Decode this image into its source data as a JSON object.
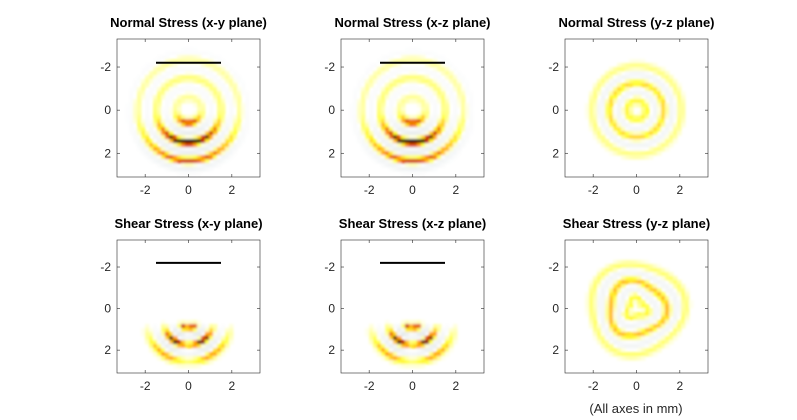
{
  "figure": {
    "note": "(All axes in mm)"
  },
  "chart_data": [
    {
      "type": "heatmap",
      "title": "Normal Stress (x-y plane)",
      "xlim": [
        -3.3,
        3.3
      ],
      "ylim": [
        -3.3,
        3.1
      ],
      "y_reversed": true,
      "xticks": [
        -2,
        0,
        2
      ],
      "yticks": [
        -2,
        0,
        2
      ],
      "xticklabels": [
        "-2",
        "0",
        "2"
      ],
      "yticklabels": [
        "-2",
        "0",
        "2"
      ],
      "colormap": [
        "#c8d4d8",
        "#ffffff",
        "#ffff33",
        "#ff9900",
        "#c01000",
        "#200000"
      ],
      "transducer_bar": {
        "x": [
          -1.5,
          1.5
        ],
        "y": -2.2
      },
      "field": {
        "pattern": "arcs",
        "center": [
          0,
          0.0
        ],
        "arc_band": [
          0.4,
          3.2
        ],
        "rings": [
          {
            "r": 0.6,
            "amp": 0.75
          },
          {
            "r": 1.05,
            "amp": -0.35
          },
          {
            "r": 1.5,
            "amp": 1.0
          },
          {
            "r": 1.95,
            "amp": -0.35
          },
          {
            "r": 2.35,
            "amp": 0.7
          },
          {
            "r": 2.7,
            "amp": -0.25
          }
        ]
      }
    },
    {
      "type": "heatmap",
      "title": "Normal Stress  (x-z plane)",
      "xlim": [
        -3.3,
        3.3
      ],
      "ylim": [
        -3.3,
        3.1
      ],
      "y_reversed": true,
      "xticks": [
        -2,
        0,
        2
      ],
      "yticks": [
        -2,
        0,
        2
      ],
      "xticklabels": [
        "-2",
        "0",
        "2"
      ],
      "yticklabels": [
        "-2",
        "0",
        "2"
      ],
      "transducer_bar": {
        "x": [
          -1.5,
          1.5
        ],
        "y": -2.2
      },
      "field": {
        "pattern": "arcs",
        "center": [
          0,
          0.0
        ],
        "arc_band": [
          0.4,
          3.2
        ],
        "rings": [
          {
            "r": 0.6,
            "amp": 0.75
          },
          {
            "r": 1.05,
            "amp": -0.35
          },
          {
            "r": 1.5,
            "amp": 1.0
          },
          {
            "r": 1.95,
            "amp": -0.35
          },
          {
            "r": 2.35,
            "amp": 0.7
          },
          {
            "r": 2.7,
            "amp": -0.25
          }
        ]
      }
    },
    {
      "type": "heatmap",
      "title": "Normal Stress  (y-z plane)",
      "xlim": [
        -3.3,
        3.3
      ],
      "ylim": [
        -3.3,
        3.1
      ],
      "y_reversed": true,
      "xticks": [
        -2,
        0,
        2
      ],
      "yticks": [
        -2,
        0,
        2
      ],
      "xticklabels": [
        "-2",
        "0",
        "2"
      ],
      "yticklabels": [
        "-2",
        "0",
        "2"
      ],
      "transducer_bar": null,
      "field": {
        "pattern": "rings",
        "center": [
          0,
          0.0
        ],
        "rings": [
          {
            "r": 0.45,
            "amp": 0.5
          },
          {
            "r": 0.85,
            "amp": -0.3
          },
          {
            "r": 1.25,
            "amp": 0.6
          },
          {
            "r": 1.65,
            "amp": -0.3
          },
          {
            "r": 2.05,
            "amp": 0.3
          }
        ]
      }
    },
    {
      "type": "heatmap",
      "title": "Shear Stress (x-y plane)",
      "xlim": [
        -3.3,
        3.3
      ],
      "ylim": [
        -3.3,
        3.1
      ],
      "y_reversed": true,
      "xticks": [
        -2,
        0,
        2
      ],
      "yticks": [
        -2,
        0,
        2
      ],
      "xticklabels": [
        "-2",
        "0",
        "2"
      ],
      "yticklabels": [
        "-2",
        "0",
        "2"
      ],
      "transducer_bar": {
        "x": [
          -1.5,
          1.5
        ],
        "y": -2.2
      },
      "field": {
        "pattern": "shear",
        "center": [
          0,
          0.6
        ],
        "rings": [
          {
            "r": 0.35,
            "amp": 0.9
          },
          {
            "r": 0.75,
            "amp": -0.5
          },
          {
            "r": 1.15,
            "amp": 1.0
          },
          {
            "r": 1.55,
            "amp": -0.4
          },
          {
            "r": 1.95,
            "amp": 0.6
          }
        ]
      }
    },
    {
      "type": "heatmap",
      "title": "Shear Stress (x-z plane)",
      "xlim": [
        -3.3,
        3.3
      ],
      "ylim": [
        -3.3,
        3.1
      ],
      "y_reversed": true,
      "xticks": [
        -2,
        0,
        2
      ],
      "yticks": [
        -2,
        0,
        2
      ],
      "xticklabels": [
        "-2",
        "0",
        "2"
      ],
      "yticklabels": [
        "-2",
        "0",
        "2"
      ],
      "transducer_bar": {
        "x": [
          -1.5,
          1.5
        ],
        "y": -2.2
      },
      "field": {
        "pattern": "shear",
        "center": [
          0,
          0.6
        ],
        "rings": [
          {
            "r": 0.35,
            "amp": 0.9
          },
          {
            "r": 0.75,
            "amp": -0.5
          },
          {
            "r": 1.15,
            "amp": 1.0
          },
          {
            "r": 1.55,
            "amp": -0.4
          },
          {
            "r": 1.95,
            "amp": 0.6
          }
        ]
      }
    },
    {
      "type": "heatmap",
      "title": "Shear Stress (y-z plane)",
      "xlim": [
        -3.3,
        3.3
      ],
      "ylim": [
        -3.3,
        3.1
      ],
      "y_reversed": true,
      "xticks": [
        -2,
        0,
        2
      ],
      "yticks": [
        -2,
        0,
        2
      ],
      "xticklabels": [
        "-2",
        "0",
        "2"
      ],
      "yticklabels": [
        "-2",
        "0",
        "2"
      ],
      "transducer_bar": null,
      "field": {
        "pattern": "rings-wobble",
        "center": [
          0,
          0.0
        ],
        "rings": [
          {
            "r": 0.45,
            "amp": 0.5
          },
          {
            "r": 0.85,
            "amp": -0.3
          },
          {
            "r": 1.3,
            "amp": 0.7
          },
          {
            "r": 1.75,
            "amp": -0.3
          },
          {
            "r": 2.15,
            "amp": 0.35
          }
        ]
      }
    }
  ]
}
